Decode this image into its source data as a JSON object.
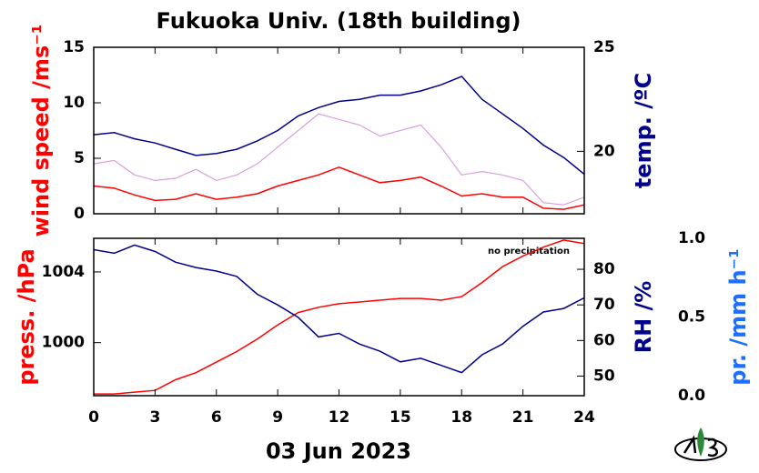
{
  "chart_data": [
    {
      "type": "line",
      "title": "Fukuoka Univ. (18th building)",
      "ylabel": "wind speed /ms⁻¹",
      "ylabel_color": "#ff0000",
      "y2label": "temp. /ºC",
      "y2label_color": "#00008b",
      "x": [
        0,
        1,
        2,
        3,
        4,
        5,
        6,
        7,
        8,
        9,
        10,
        11,
        12,
        13,
        14,
        15,
        16,
        17,
        18,
        19,
        20,
        21,
        22,
        23,
        24
      ],
      "xlim": [
        0,
        24
      ],
      "ylim": [
        0,
        15
      ],
      "yticks": [
        0,
        5,
        10,
        15
      ],
      "y2lim": [
        17,
        25
      ],
      "y2ticks": [
        20,
        25
      ],
      "series": [
        {
          "color": "#d8a0dc",
          "values": [
            4.5,
            4.8,
            3.5,
            3,
            3.2,
            4,
            3,
            3.5,
            4.5,
            6,
            7.5,
            9,
            8.5,
            8,
            7,
            7.5,
            8,
            6,
            3.5,
            3.8,
            3.5,
            3,
            1,
            0.8,
            1.5
          ]
        },
        {
          "color": "#ff0000",
          "values": [
            2.5,
            2.3,
            1.7,
            1.2,
            1.3,
            1.8,
            1.3,
            1.5,
            1.8,
            2.5,
            3,
            3.5,
            4.2,
            3.5,
            2.8,
            3,
            3.3,
            2.5,
            1.6,
            1.8,
            1.5,
            1.5,
            0.5,
            0.4,
            0.8
          ]
        },
        {
          "color": "#00008b",
          "axis": "y2",
          "values": [
            20.8,
            20.9,
            20.6,
            20.4,
            20.1,
            19.8,
            19.9,
            20.1,
            20.5,
            21,
            21.7,
            22.1,
            22.4,
            22.5,
            22.7,
            22.7,
            22.9,
            23.2,
            23.6,
            22.5,
            21.8,
            21.1,
            20.3,
            19.7,
            18.9
          ]
        }
      ]
    },
    {
      "type": "line",
      "ylabel": "press. /hPa",
      "ylabel_color": "#ff0000",
      "y2label": "RH /%",
      "y2label_color": "#00008b",
      "y3label": "pr. /mm h⁻¹",
      "y3label_color": "#1e6eff",
      "annotation": "no precipitation",
      "xlabel": "03 Jun 2023",
      "x": [
        0,
        1,
        2,
        3,
        4,
        5,
        6,
        7,
        8,
        9,
        10,
        11,
        12,
        13,
        14,
        15,
        16,
        17,
        18,
        19,
        20,
        21,
        22,
        23,
        24
      ],
      "xlim": [
        0,
        24
      ],
      "xticks": [
        0,
        3,
        6,
        9,
        12,
        15,
        18,
        21,
        24
      ],
      "ylim": [
        997,
        1005.9
      ],
      "yticks": [
        1000,
        1004
      ],
      "y2lim": [
        44.5,
        88.7
      ],
      "y2ticks": [
        50,
        60,
        70,
        80
      ],
      "y3lim": [
        0,
        1
      ],
      "y3ticks": [
        {
          "value": 0,
          "label": "0.0"
        },
        {
          "value": 0.5,
          "label": "0.5"
        },
        {
          "value": 1,
          "label": "1.0"
        }
      ],
      "series": [
        {
          "color": "#ff0000",
          "values": [
            997.1,
            997.1,
            997.2,
            997.3,
            997.9,
            998.3,
            998.9,
            999.5,
            1000.2,
            1001,
            1001.7,
            1002,
            1002.2,
            1002.3,
            1002.4,
            1002.5,
            1002.5,
            1002.4,
            1002.6,
            1003.4,
            1004.3,
            1004.9,
            1005.4,
            1005.8,
            1005.6
          ]
        },
        {
          "color": "#00008b",
          "axis": "y2",
          "values": [
            85.5,
            84.5,
            86.8,
            85,
            82,
            80.5,
            79.5,
            78,
            73,
            70,
            66.5,
            61,
            62,
            59,
            57,
            54,
            55,
            53,
            51,
            56,
            59,
            64,
            68,
            69,
            72
          ]
        }
      ]
    }
  ]
}
